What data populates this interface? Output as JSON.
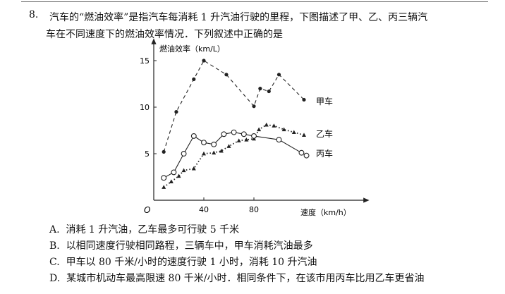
{
  "question": {
    "number": "8.",
    "stem_line1": "汽车的“燃油效率”是指汽车每消耗 1 升汽油行驶的里程，下图描述了甲、乙、丙三辆汽",
    "stem_line2": "车在不同速度下的燃油效率情况．下列叙述中正确的是"
  },
  "options": [
    {
      "letter": "A.",
      "text": "消耗 1 升汽油，乙车最多可行驶 5 千米"
    },
    {
      "letter": "B.",
      "text": "以相同速度行驶相同路程，三辆车中，甲车消耗汽油最多"
    },
    {
      "letter": "C.",
      "text": "甲车以 80 千米/小时的速度行驶 1 小时，消耗 10 升汽油"
    },
    {
      "letter": "D.",
      "text": "某城市机动车最高限速 80 千米/小时．相同条件下，在该市用丙车比用乙车更省油"
    }
  ],
  "chart_data": {
    "type": "line",
    "ylabel": "燃油效率（km/L）",
    "xlabel": "速度（km/h）",
    "origin_label": "O",
    "xticks": [
      40,
      80
    ],
    "yticks": [
      5,
      10,
      15
    ],
    "xlim": [
      0,
      120
    ],
    "ylim": [
      0,
      17.5
    ],
    "series": [
      {
        "name": "甲车",
        "marker": "dot",
        "line": "dashed",
        "x": [
          8,
          18,
          32,
          40,
          58,
          80,
          85,
          92,
          100,
          120
        ],
        "y": [
          5.2,
          9.5,
          13,
          15,
          13.5,
          10.1,
          12,
          11.7,
          13.5,
          10.8
        ]
      },
      {
        "name": "乙车",
        "marker": "triangle",
        "line": "dotted",
        "x": [
          8,
          14,
          20,
          24,
          32,
          40,
          48,
          54,
          60,
          68,
          74,
          80,
          84,
          90,
          96,
          104,
          112,
          120
        ],
        "y": [
          1.4,
          2,
          2.6,
          3.2,
          3.4,
          5,
          5.1,
          5.3,
          5.8,
          6.4,
          6.5,
          6.6,
          7.6,
          8.1,
          8,
          7.6,
          7.3,
          7
        ]
      },
      {
        "name": "丙车",
        "marker": "circle",
        "line": "solid",
        "x": [
          8,
          16,
          24,
          32,
          40,
          48,
          56,
          64,
          72,
          80,
          100,
          118,
          122
        ],
        "y": [
          2.4,
          3,
          5,
          6.9,
          6.2,
          6,
          7.1,
          7.3,
          7.1,
          6.9,
          6.5,
          5.1,
          4.8
        ]
      }
    ]
  }
}
